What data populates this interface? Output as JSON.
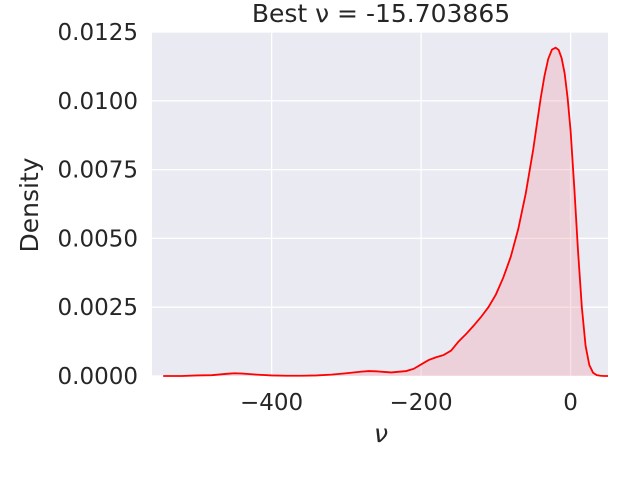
{
  "chart_data": {
    "type": "area",
    "title": "Best ν = -15.703865",
    "xlabel": "ν",
    "ylabel": "Density",
    "xlim": [
      -560,
      50
    ],
    "ylim": [
      0,
      0.0125
    ],
    "xticks": [
      -400,
      -200,
      0
    ],
    "xtick_labels": [
      "−400",
      "−200",
      "0"
    ],
    "yticks": [
      0,
      0.0025,
      0.005,
      0.0075,
      0.01,
      0.0125
    ],
    "ytick_labels": [
      "0.0000",
      "0.0025",
      "0.0050",
      "0.0075",
      "0.0100",
      "0.0125"
    ],
    "grid": true,
    "background": "#eaeaf2",
    "line_color": "#ff0000",
    "fill_color": "#f0a3b0",
    "series": [
      {
        "x": [
          -545,
          -520,
          -500,
          -480,
          -460,
          -450,
          -440,
          -420,
          -400,
          -380,
          -360,
          -340,
          -320,
          -300,
          -280,
          -270,
          -260,
          -240,
          -220,
          -210,
          -200,
          -190,
          -180,
          -170,
          -160,
          -150,
          -140,
          -130,
          -120,
          -110,
          -100,
          -90,
          -80,
          -70,
          -60,
          -50,
          -45,
          -40,
          -35,
          -30,
          -25,
          -20,
          -16,
          -12,
          -8,
          -4,
          0,
          5,
          10,
          15,
          20,
          25,
          30,
          35,
          40,
          45,
          50
        ],
        "y": [
          0,
          0,
          2e-05,
          3e-05,
          8e-05,
          0.0001,
          9e-05,
          5e-05,
          2e-05,
          1e-05,
          1e-05,
          2e-05,
          5e-05,
          0.0001,
          0.00016,
          0.00018,
          0.00017,
          0.00013,
          0.00018,
          0.00026,
          0.00042,
          0.00058,
          0.00068,
          0.00076,
          0.00092,
          0.00125,
          0.00152,
          0.00182,
          0.00214,
          0.0025,
          0.00296,
          0.00358,
          0.00434,
          0.00535,
          0.00664,
          0.00824,
          0.00918,
          0.0101,
          0.0109,
          0.01152,
          0.01186,
          0.01193,
          0.01185,
          0.01155,
          0.011,
          0.0101,
          0.0089,
          0.0068,
          0.0045,
          0.0025,
          0.0011,
          0.0004,
          0.00012,
          3e-05,
          1e-05,
          0,
          0
        ]
      }
    ]
  }
}
